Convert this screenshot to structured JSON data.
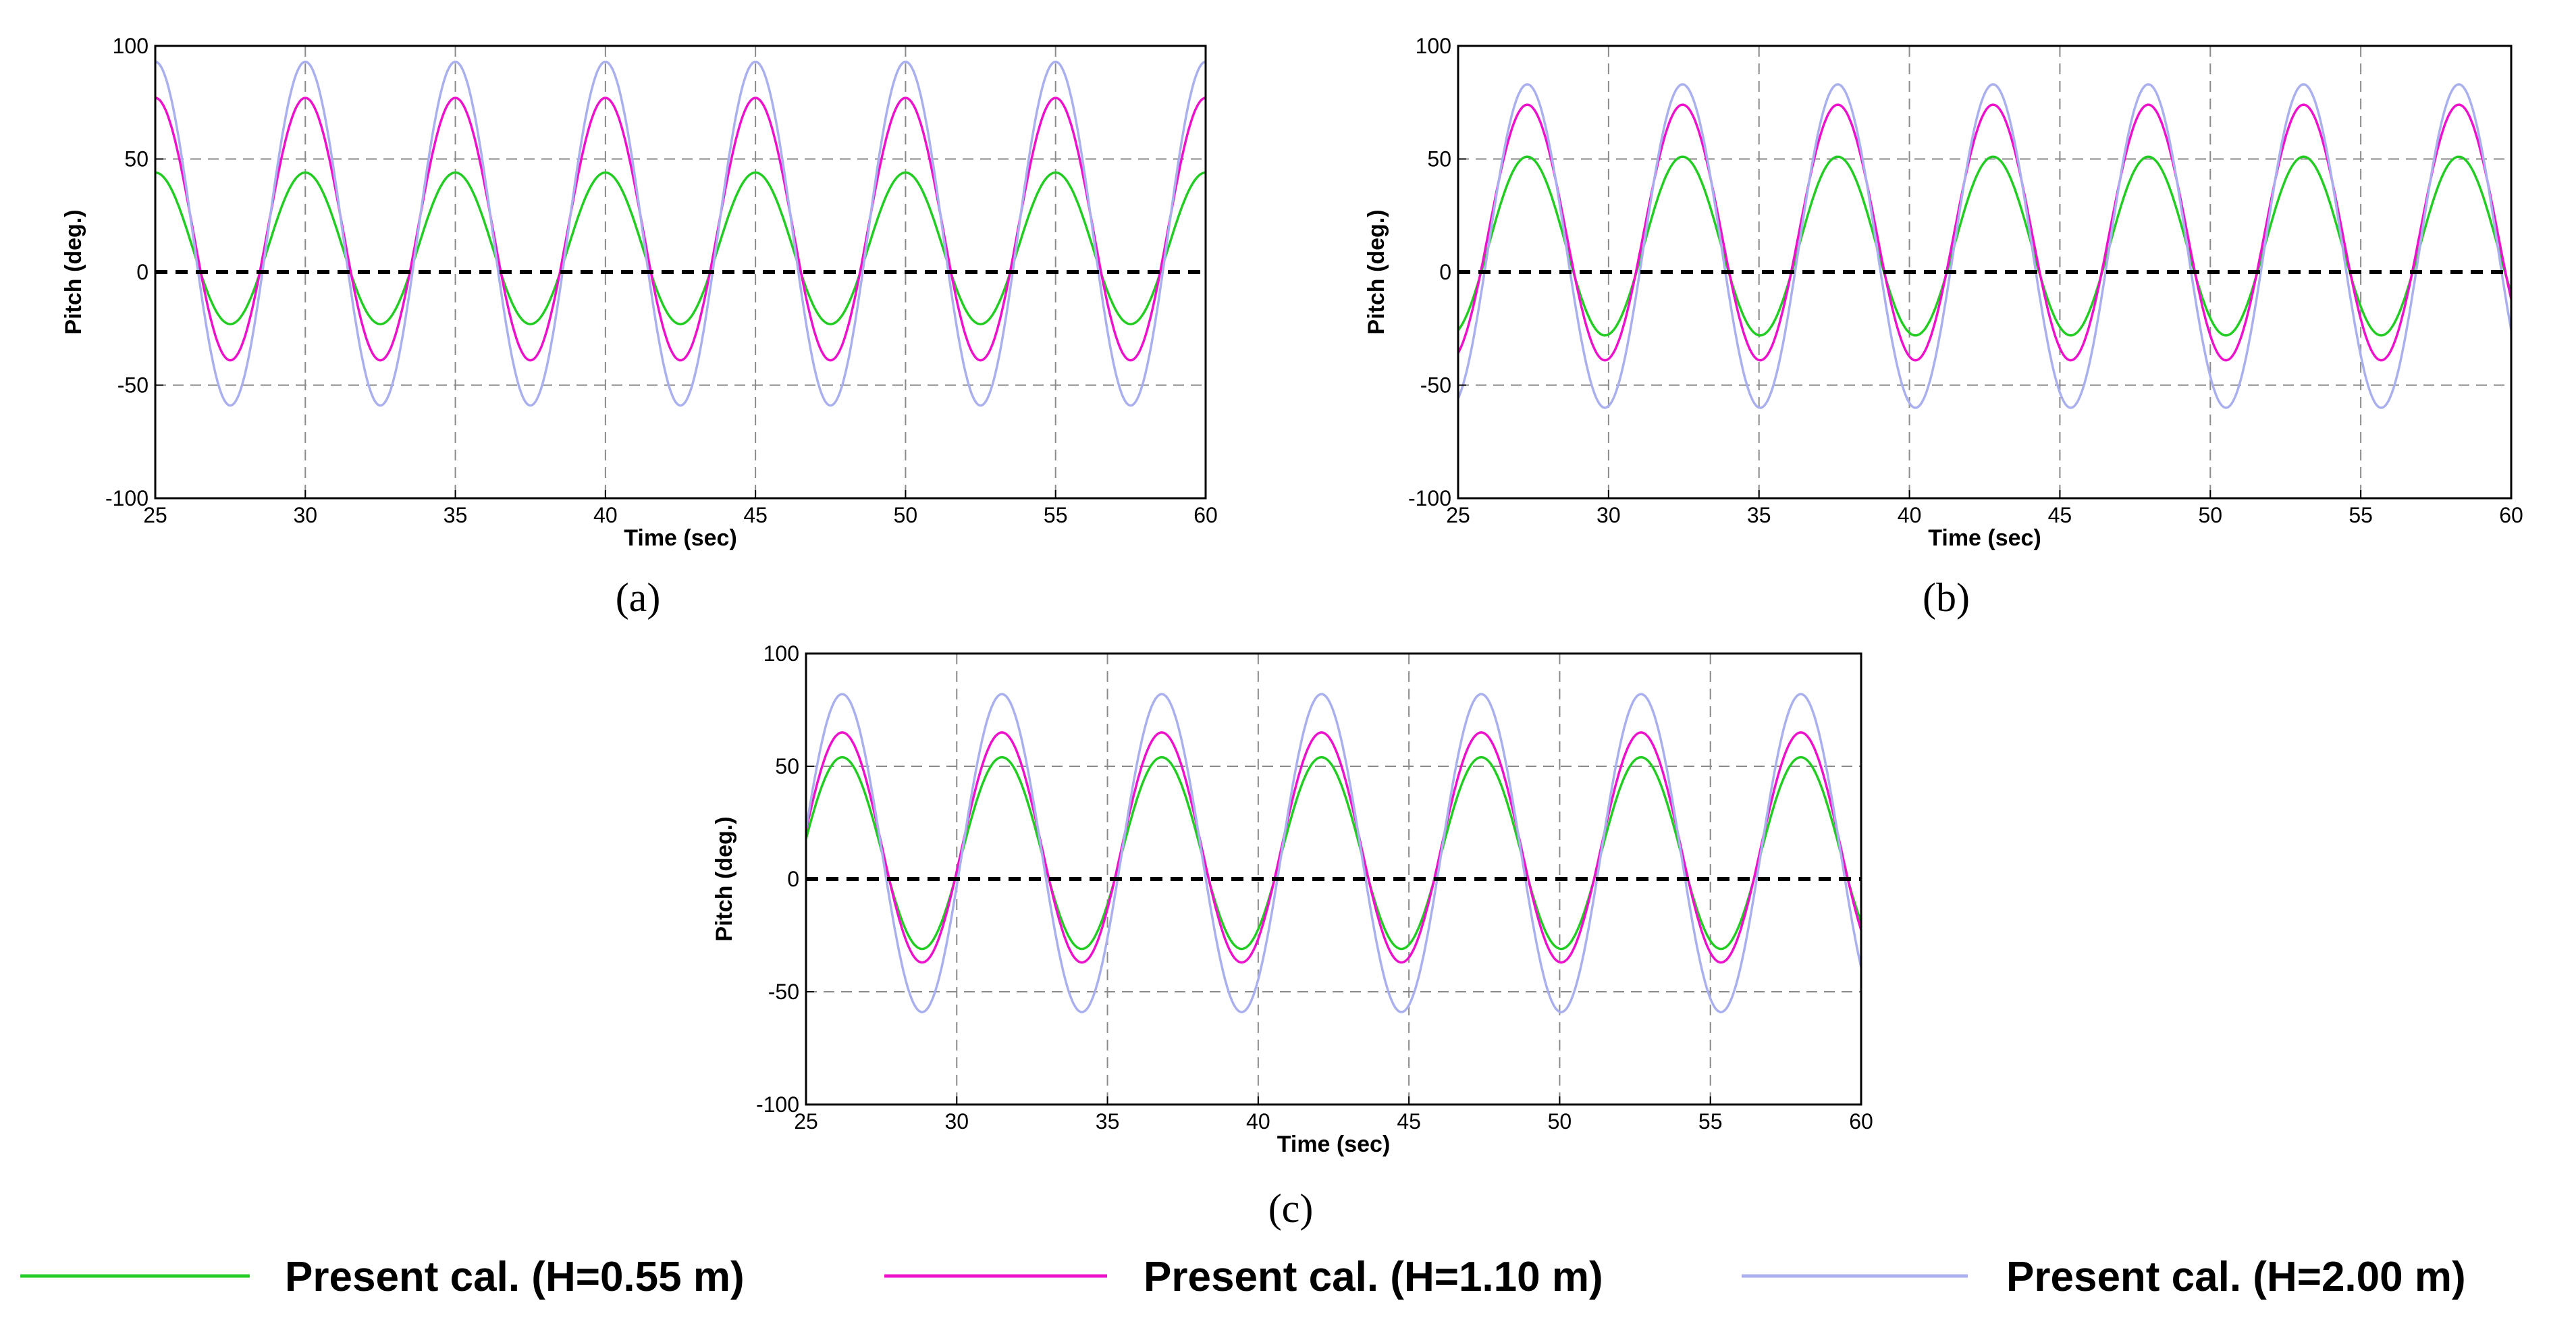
{
  "legend": [
    {
      "label": "Present cal. (H=0.55 m)",
      "color": "#22cc22"
    },
    {
      "label": "Present cal. (H=1.10 m)",
      "color": "#ee11cc"
    },
    {
      "label": "Present cal. (H=2.00 m)",
      "color": "#aab0ee"
    }
  ],
  "chart_data": [
    {
      "type": "line",
      "panel": "(a)",
      "xlabel": "Time (sec)",
      "ylabel": "Pitch (deg.)",
      "xlim": [
        25,
        60
      ],
      "ylim": [
        -100,
        100
      ],
      "xticks": [
        25,
        30,
        35,
        40,
        45,
        50,
        55,
        60
      ],
      "yticks": [
        -100,
        -50,
        0,
        50,
        100
      ],
      "grid": true,
      "reference_line_y": 0,
      "series": [
        {
          "name": "Present cal. (H=0.55 m)",
          "color": "#22cc22",
          "period": 5.0,
          "crest_time": 30.0,
          "max": 44,
          "min": -23
        },
        {
          "name": "Present cal. (H=1.10 m)",
          "color": "#ee11cc",
          "period": 5.0,
          "crest_time": 30.0,
          "max": 77,
          "min": -39
        },
        {
          "name": "Present cal. (H=2.00 m)",
          "color": "#aab0ee",
          "period": 5.0,
          "crest_time": 30.0,
          "max": 93,
          "min": -59
        }
      ]
    },
    {
      "type": "line",
      "panel": "(b)",
      "xlabel": "Time (sec)",
      "ylabel": "Pitch (deg.)",
      "xlim": [
        25,
        60
      ],
      "ylim": [
        -100,
        100
      ],
      "xticks": [
        25,
        30,
        35,
        40,
        45,
        50,
        55,
        60
      ],
      "yticks": [
        -100,
        -50,
        0,
        50,
        100
      ],
      "grid": true,
      "reference_line_y": 0,
      "series": [
        {
          "name": "Present cal. (H=0.55 m)",
          "color": "#22cc22",
          "period": 5.16,
          "crest_time": 27.3,
          "max": 51,
          "min": -28
        },
        {
          "name": "Present cal. (H=1.10 m)",
          "color": "#ee11cc",
          "period": 5.16,
          "crest_time": 27.3,
          "max": 74,
          "min": -39
        },
        {
          "name": "Present cal. (H=2.00 m)",
          "color": "#aab0ee",
          "period": 5.16,
          "crest_time": 27.3,
          "max": 83,
          "min": -60
        }
      ]
    },
    {
      "type": "line",
      "panel": "(c)",
      "xlabel": "Time (sec)",
      "ylabel": "Pitch (deg.)",
      "xlim": [
        25,
        60
      ],
      "ylim": [
        -100,
        100
      ],
      "xticks": [
        25,
        30,
        35,
        40,
        45,
        50,
        55,
        60
      ],
      "yticks": [
        -100,
        -50,
        0,
        50,
        100
      ],
      "grid": true,
      "reference_line_y": 0,
      "series": [
        {
          "name": "Present cal. (H=0.55 m)",
          "color": "#22cc22",
          "period": 5.3,
          "crest_time": 26.2,
          "max": 54,
          "min": -31
        },
        {
          "name": "Present cal. (H=1.10 m)",
          "color": "#ee11cc",
          "period": 5.3,
          "crest_time": 26.2,
          "max": 65,
          "min": -37
        },
        {
          "name": "Present cal. (H=2.00 m)",
          "color": "#aab0ee",
          "period": 5.3,
          "crest_time": 26.2,
          "max": 82,
          "min": -59
        }
      ]
    }
  ]
}
